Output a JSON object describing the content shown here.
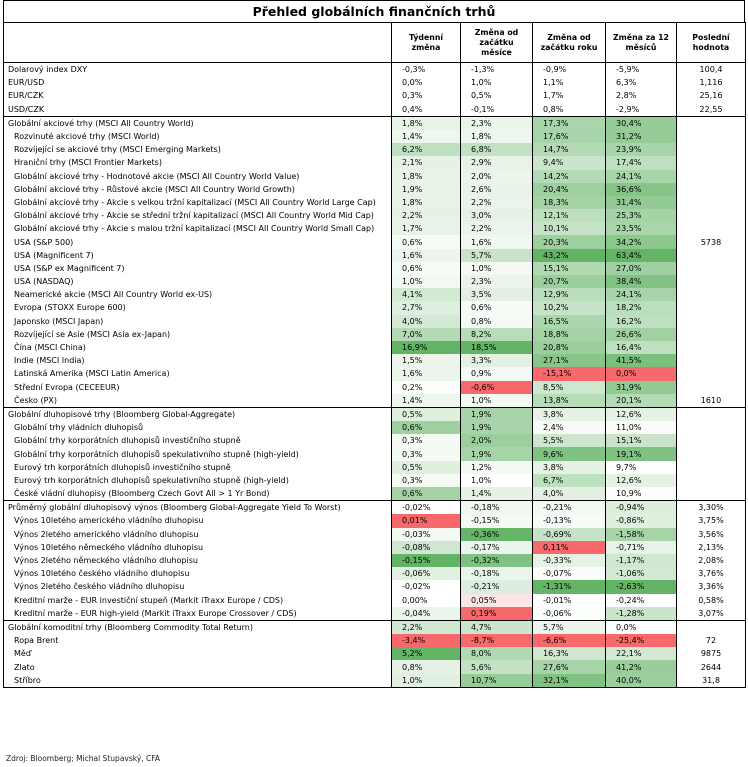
{
  "title": "Přehled globálních finančních trhů",
  "headers": [
    "",
    "Týdenní změna",
    "Změna od začátku měsíce",
    "Změna od začátku roku",
    "Změna za 12 měsíců",
    "Poslední hodnota"
  ],
  "groups": [
    {
      "rows": [
        {
          "label": "Dolarový index DXY",
          "indent": false,
          "values": [
            "-0,3%",
            "-1,3%",
            "-0,9%",
            "-5,9%"
          ],
          "colors": [
            "#ffffff",
            "#ffffff",
            "#ffffff",
            "#ffffff"
          ],
          "last": "100,4"
        },
        {
          "label": "EUR/USD",
          "indent": false,
          "values": [
            "0,0%",
            "1,0%",
            "1,1%",
            "6,3%"
          ],
          "colors": [
            "#ffffff",
            "#ffffff",
            "#ffffff",
            "#ffffff"
          ],
          "last": "1,116"
        },
        {
          "label": "EUR/CZK",
          "indent": false,
          "values": [
            "0,3%",
            "0,5%",
            "1,7%",
            "2,8%"
          ],
          "colors": [
            "#ffffff",
            "#ffffff",
            "#ffffff",
            "#ffffff"
          ],
          "last": "25,16"
        },
        {
          "label": "USD/CZK",
          "indent": false,
          "values": [
            "0,4%",
            "-0,1%",
            "0,8%",
            "-2,9%"
          ],
          "colors": [
            "#ffffff",
            "#ffffff",
            "#ffffff",
            "#ffffff"
          ],
          "last": "22,55"
        }
      ]
    },
    {
      "rows": [
        {
          "label": "Globální akciové trhy (MSCI All Country World)",
          "indent": false,
          "values": [
            "1,8%",
            "2,3%",
            "17,3%",
            "30,4%"
          ],
          "colors": [
            "#e8f3e8",
            "#ebf5eb",
            "#a9d5aa",
            "#96cc98"
          ],
          "last": ""
        },
        {
          "label": "Rozvinuté akciové trhy (MSCI World)",
          "indent": true,
          "values": [
            "1,4%",
            "1,8%",
            "17,6%",
            "31,2%"
          ],
          "colors": [
            "#eef7ee",
            "#eef7ee",
            "#a7d4a8",
            "#94cb96"
          ],
          "last": ""
        },
        {
          "label": "Rozvíjející se akciové trhy (MSCI Emerging Markets)",
          "indent": true,
          "values": [
            "6,2%",
            "6,8%",
            "14,7%",
            "23,9%"
          ],
          "colors": [
            "#bfe0c0",
            "#c2e1c3",
            "#b3dab4",
            "#a8d4a9"
          ],
          "last": ""
        },
        {
          "label": "Hraniční trhy (MSCI Frontier Markets)",
          "indent": true,
          "values": [
            "2,1%",
            "2,9%",
            "9,4%",
            "17,4%"
          ],
          "colors": [
            "#e6f2e6",
            "#e7f3e7",
            "#cae5cb",
            "#bde0be"
          ],
          "last": ""
        },
        {
          "label": "Globální akciové trhy - Hodnotové akcie (MSCI All Country World Value)",
          "indent": true,
          "values": [
            "1,8%",
            "2,0%",
            "14,2%",
            "24,1%"
          ],
          "colors": [
            "#e8f3e8",
            "#ecf5ec",
            "#b5dbb6",
            "#a8d4a9"
          ],
          "last": ""
        },
        {
          "label": "Globální akciové trhy - Růstové akcie (MSCI All Country World Growth)",
          "indent": true,
          "values": [
            "1,9%",
            "2,6%",
            "20,4%",
            "36,6%"
          ],
          "colors": [
            "#e7f3e7",
            "#e9f4e9",
            "#9dcf9f",
            "#86c488"
          ],
          "last": ""
        },
        {
          "label": "Globální akciové trhy - Akcie s velkou tržní kapitalizací (MSCI All Country World Large Cap)",
          "indent": true,
          "values": [
            "1,8%",
            "2,2%",
            "18,3%",
            "31,4%"
          ],
          "colors": [
            "#e8f3e8",
            "#eaf4ea",
            "#a5d3a6",
            "#93ca95"
          ],
          "last": ""
        },
        {
          "label": "Globální akciové trhy - Akcie se střední tržní kapitalizací (MSCI All Country World Mid Cap)",
          "indent": true,
          "values": [
            "2,2%",
            "3,0%",
            "12,1%",
            "25,3%"
          ],
          "colors": [
            "#e5f2e5",
            "#e6f2e6",
            "#bddfbe",
            "#a5d3a6"
          ],
          "last": ""
        },
        {
          "label": "Globální akciové trhy - Akcie s malou tržní kapitalizací (MSCI All Country World Small Cap)",
          "indent": true,
          "values": [
            "1,7%",
            "2,2%",
            "10,1%",
            "23,5%"
          ],
          "colors": [
            "#e9f4e9",
            "#eaf4ea",
            "#c6e3c7",
            "#a9d5aa"
          ],
          "last": ""
        },
        {
          "label": "USA (S&P 500)",
          "indent": true,
          "values": [
            "0,6%",
            "1,6%",
            "20,3%",
            "34,2%"
          ],
          "colors": [
            "#f7fbf7",
            "#f0f7f0",
            "#9dcf9f",
            "#8cc78e"
          ],
          "last": "5738"
        },
        {
          "label": "USA (Magnificent 7)",
          "indent": true,
          "values": [
            "1,6%",
            "5,7%",
            "43,2%",
            "63,4%"
          ],
          "colors": [
            "#ebf5eb",
            "#c9e4ca",
            "#63b465",
            "#63b465"
          ],
          "last": ""
        },
        {
          "label": "USA (S&P ex Magnificent 7)",
          "indent": true,
          "values": [
            "0,6%",
            "1,0%",
            "15,1%",
            "27,0%"
          ],
          "colors": [
            "#f7fbf7",
            "#f4f9f4",
            "#b1d9b2",
            "#a0d0a1"
          ],
          "last": ""
        },
        {
          "label": "USA (NASDAQ)",
          "indent": true,
          "values": [
            "1,0%",
            "2,3%",
            "20,7%",
            "38,4%"
          ],
          "colors": [
            "#f2f8f2",
            "#eaf4ea",
            "#9ccf9e",
            "#83c285"
          ],
          "last": ""
        },
        {
          "label": "Neamerické akcie (MSCI All Country World ex-US)",
          "indent": true,
          "values": [
            "4,1%",
            "3,5%",
            "12,9%",
            "24,1%"
          ],
          "colors": [
            "#d2e9d3",
            "#e1f0e1",
            "#badebb",
            "#a8d4a9"
          ],
          "last": ""
        },
        {
          "label": "Evropa (STOXX Europe 600)",
          "indent": true,
          "values": [
            "2,7%",
            "0,6%",
            "10,2%",
            "18,2%"
          ],
          "colors": [
            "#dfefdf",
            "#f7fbf7",
            "#c6e3c7",
            "#bbdfbc"
          ],
          "last": ""
        },
        {
          "label": "Japonsko (MSCI Japan)",
          "indent": true,
          "values": [
            "4,0%",
            "0,8%",
            "16,5%",
            "16,2%"
          ],
          "colors": [
            "#d3e9d4",
            "#f5faf5",
            "#acd6ad",
            "#bfe0c0"
          ],
          "last": ""
        },
        {
          "label": "Rozvíjející se Asie (MSCI Asia ex-Japan)",
          "indent": true,
          "values": [
            "7,0%",
            "8,2%",
            "18,8%",
            "26,6%"
          ],
          "colors": [
            "#b3dab4",
            "#b8ddb9",
            "#a3d2a4",
            "#a1d0a2"
          ],
          "last": ""
        },
        {
          "label": "Čína (MSCI China)",
          "indent": true,
          "values": [
            "16,9%",
            "18,5%",
            "20,8%",
            "16,4%"
          ],
          "colors": [
            "#63b465",
            "#63b465",
            "#9bce9d",
            "#bee0bf"
          ],
          "last": ""
        },
        {
          "label": "Indie (MSCI India)",
          "indent": true,
          "values": [
            "1,5%",
            "3,3%",
            "27,1%",
            "41,5%"
          ],
          "colors": [
            "#ecf5ec",
            "#e3f1e3",
            "#87c589",
            "#7ac07c"
          ],
          "last": ""
        },
        {
          "label": "Latinská Amerika (MSCI Latin America)",
          "indent": true,
          "values": [
            "1,6%",
            "0,9%",
            "-15,1%",
            "0,0%"
          ],
          "colors": [
            "#ebf5eb",
            "#f4f9f4",
            "#f8696b",
            "#f8696b"
          ],
          "last": ""
        },
        {
          "label": "Střední Evropa (CECEEUR)",
          "indent": true,
          "values": [
            "0,2%",
            "-0,6%",
            "8,5%",
            "31,9%"
          ],
          "colors": [
            "#fcfefc",
            "#f8696b",
            "#cee7cf",
            "#92ca94"
          ],
          "last": ""
        },
        {
          "label": "Česko (PX)",
          "indent": true,
          "values": [
            "1,4%",
            "1,0%",
            "13,8%",
            "20,1%"
          ],
          "colors": [
            "#eef7ee",
            "#f4f9f4",
            "#b7dcb8",
            "#b5dbb6"
          ],
          "last": "1610"
        }
      ]
    },
    {
      "rows": [
        {
          "label": "Globální dluhopisové trhy (Bloomberg Global-Aggregate)",
          "indent": false,
          "values": [
            "0,5%",
            "1,9%",
            "3,8%",
            "12,6%"
          ],
          "colors": [
            "#dff0df",
            "#a8d4a9",
            "#e5f2e5",
            "#e6f2e6"
          ],
          "last": ""
        },
        {
          "label": "Globální trhy vládních dluhopisů",
          "indent": true,
          "values": [
            "0,6%",
            "1,9%",
            "2,4%",
            "11,0%"
          ],
          "colors": [
            "#9fd0a0",
            "#a8d4a9",
            "#f7fbf7",
            "#fbfdfb"
          ],
          "last": ""
        },
        {
          "label": "Globální trhy korporátních dluhopisů investičního stupně",
          "indent": true,
          "values": [
            "0,3%",
            "2,0%",
            "5,5%",
            "15,1%"
          ],
          "colors": [
            "#f5faf5",
            "#9ccf9e",
            "#cde6ce",
            "#c9e4ca"
          ],
          "last": ""
        },
        {
          "label": "Globální trhy korporátních dluhopisů spekulativního stupně (high-yield)",
          "indent": true,
          "values": [
            "0,3%",
            "1,9%",
            "9,6%",
            "19,1%"
          ],
          "colors": [
            "#f5faf5",
            "#a8d4a9",
            "#7fc281",
            "#7fc281"
          ],
          "last": ""
        },
        {
          "label": "Eurový trh korporátních dluhopisů investičního stupně",
          "indent": true,
          "values": [
            "0,5%",
            "1,2%",
            "3,8%",
            "9,7%"
          ],
          "colors": [
            "#dff0df",
            "#f4f9f4",
            "#e5f2e5",
            "#ffffff"
          ],
          "last": ""
        },
        {
          "label": "Eurový trh korporátních dluhopisů spekulativního stupně (high-yield)",
          "indent": true,
          "values": [
            "0,3%",
            "1,0%",
            "6,7%",
            "12,6%"
          ],
          "colors": [
            "#f5faf5",
            "#ffffff",
            "#bde0be",
            "#e6f2e6"
          ],
          "last": ""
        },
        {
          "label": "České vládní dluhopisy (Bloomberg Czech Govt All > 1 Yr Bond)",
          "indent": true,
          "values": [
            "0,6%",
            "1,4%",
            "4,0%",
            "10,9%"
          ],
          "colors": [
            "#a4d2a5",
            "#e6f2e6",
            "#e2f0e2",
            "#fcfefc"
          ],
          "last": ""
        }
      ]
    },
    {
      "rows": [
        {
          "label": "Průměrný globální dluhopisový výnos (Bloomberg Global-Aggregate Yield To Worst)",
          "indent": false,
          "values": [
            "-0,02%",
            "-0,18%",
            "-0,21%",
            "-0,94%"
          ],
          "colors": [
            "#ffffff",
            "#f0f7f0",
            "#f2f8f2",
            "#dcefdc"
          ],
          "last": "3,30%"
        },
        {
          "label": "Výnos 10letého amerického vládního dluhopisu",
          "indent": true,
          "values": [
            "0,01%",
            "-0,15%",
            "-0,13%",
            "-0,86%"
          ],
          "colors": [
            "#f8696b",
            "#f3f9f3",
            "#f7fbf7",
            "#dff0df"
          ],
          "last": "3,75%"
        },
        {
          "label": "Výnos 2letého amerického vládního dluhopisu",
          "indent": true,
          "values": [
            "-0,03%",
            "-0,36%",
            "-0,69%",
            "-1,58%"
          ],
          "colors": [
            "#f4f9f4",
            "#66b568",
            "#c6e3c7",
            "#a6d3a7"
          ],
          "last": "3,56%"
        },
        {
          "label": "Výnos 10letého německého vládního dluhopisu",
          "indent": true,
          "values": [
            "-0,08%",
            "-0,17%",
            "0,11%",
            "-0,71%"
          ],
          "colors": [
            "#cfe7d0",
            "#ebf5eb",
            "#f8696b",
            "#e7f3e7"
          ],
          "last": "2,13%"
        },
        {
          "label": "Výnos 2letého německého vládního dluhopisu",
          "indent": true,
          "values": [
            "-0,15%",
            "-0,32%",
            "-0,33%",
            "-1,17%"
          ],
          "colors": [
            "#63b465",
            "#7fc281",
            "#e6f2e6",
            "#cfe7d0"
          ],
          "last": "2,08%"
        },
        {
          "label": "Výnos 10letého českého vládního dluhopisu",
          "indent": true,
          "values": [
            "-0,06%",
            "-0,18%",
            "-0,07%",
            "-1,06%"
          ],
          "colors": [
            "#e1f0e1",
            "#eaf4ea",
            "#fbfdfb",
            "#d3e9d4"
          ],
          "last": "3,76%"
        },
        {
          "label": "Výnos 2letého českého vládního dluhopisu",
          "indent": true,
          "values": [
            "-0,02%",
            "-0,21%",
            "-1,31%",
            "-2,63%"
          ],
          "colors": [
            "#ffffff",
            "#ddeedd",
            "#63b465",
            "#63b465"
          ],
          "last": "3,36%"
        },
        {
          "label": "Kreditní marže - EUR investiční stupeň (Markit iTraxx Europe / CDS)",
          "indent": true,
          "values": [
            "0,00%",
            "0,05%",
            "-0,01%",
            "-0,24%"
          ],
          "colors": [
            "#ffffff",
            "#fbe6e6",
            "#ffffff",
            "#ffffff"
          ],
          "last": "0,58%"
        },
        {
          "label": "Kreditní marže - EUR high-yield (Markit iTraxx Europe Crossover / CDS)",
          "indent": true,
          "values": [
            "-0,04%",
            "0,19%",
            "-0,06%",
            "-1,28%"
          ],
          "colors": [
            "#ecf5ec",
            "#f8696b",
            "#fcfefc",
            "#cbe5cc"
          ],
          "last": "3,07%"
        }
      ]
    },
    {
      "rows": [
        {
          "label": "Globální komoditní trhy (Bloomberg Commodity Total Return)",
          "indent": false,
          "values": [
            "2,2%",
            "4,7%",
            "5,7%",
            "0,0%"
          ],
          "colors": [
            "#d0e8d1",
            "#cbe5cc",
            "#ecf5ec",
            "#ffffff"
          ],
          "last": ""
        },
        {
          "label": "Ropa Brent",
          "indent": true,
          "values": [
            "-3,4%",
            "-8,7%",
            "-6,6%",
            "-25,4%"
          ],
          "colors": [
            "#f8696b",
            "#f8696b",
            "#f8696b",
            "#f8696b"
          ],
          "last": "72"
        },
        {
          "label": "Měď",
          "indent": true,
          "values": [
            "5,2%",
            "8,0%",
            "16,3%",
            "22,1%"
          ],
          "colors": [
            "#63b465",
            "#b1d9b2",
            "#cfe7d0",
            "#d3e9d4"
          ],
          "last": "9875"
        },
        {
          "label": "Zlato",
          "indent": true,
          "values": [
            "0,8%",
            "5,6%",
            "27,6%",
            "41,2%"
          ],
          "colors": [
            "#e5f2e5",
            "#c3e2c4",
            "#a6d3a7",
            "#99ce9b"
          ],
          "last": "2644"
        },
        {
          "label": "Stříbro",
          "indent": true,
          "values": [
            "1,0%",
            "10,7%",
            "32,1%",
            "40,0%"
          ],
          "colors": [
            "#e1f0e1",
            "#97cd99",
            "#7fc281",
            "#9ccf9e"
          ],
          "last": "31,8"
        }
      ]
    }
  ],
  "source": "Zdroj: Bloomberg; Michal Stupavský, CFA"
}
